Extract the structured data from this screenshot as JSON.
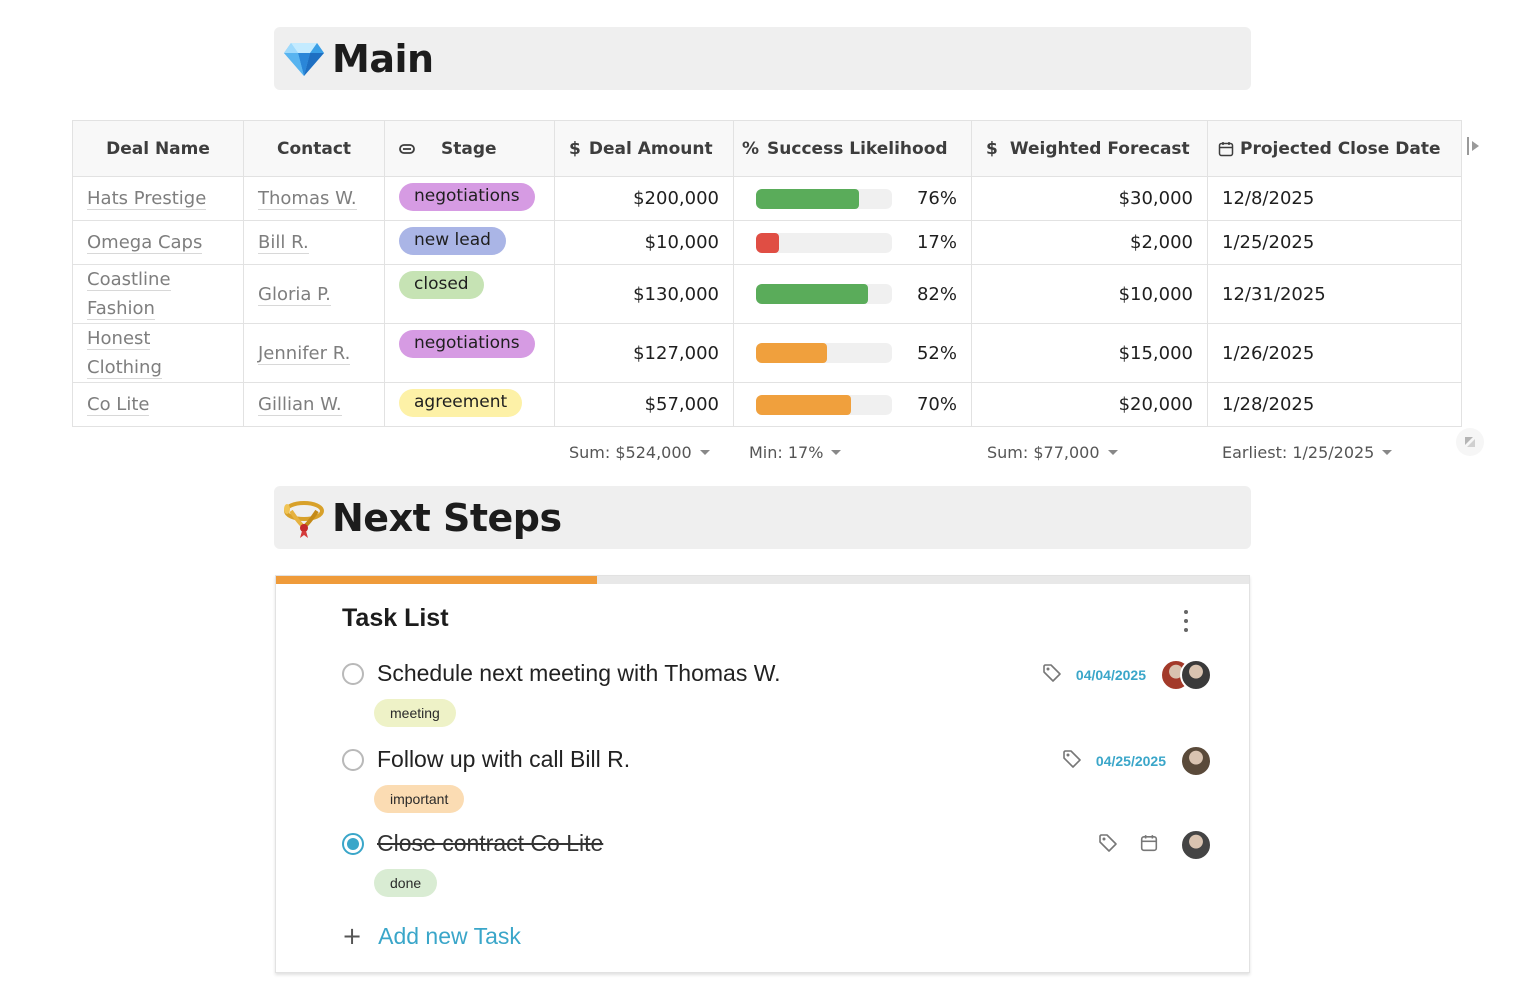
{
  "main_section": {
    "title": "Main",
    "icon": "gem-icon"
  },
  "table": {
    "columns": [
      {
        "label": "Deal Name",
        "icon": ""
      },
      {
        "label": "Contact",
        "icon": ""
      },
      {
        "label": "Stage",
        "icon": "select-icon"
      },
      {
        "label": "Deal Amount",
        "icon": "dollar-icon"
      },
      {
        "label": "Success Likelihood",
        "icon": "percent-icon"
      },
      {
        "label": "Weighted Forecast",
        "icon": "dollar-icon"
      },
      {
        "label": "Projected Close Date",
        "icon": "calendar-icon"
      }
    ],
    "rows": [
      {
        "deal": "Hats Prestige",
        "contact": "Thomas W.",
        "stage": "negotiations",
        "stage_color": "#d69be3",
        "amount": "$200,000",
        "likelihood": 0.76,
        "likelihood_label": "76%",
        "bar_color": "#5aac5a",
        "forecast": "$30,000",
        "close": "12/8/2025"
      },
      {
        "deal": "Omega Caps",
        "contact": "Bill R.",
        "stage": "new lead",
        "stage_color": "#aab5e6",
        "amount": "$10,000",
        "likelihood": 0.17,
        "likelihood_label": "17%",
        "bar_color": "#e04e44",
        "forecast": "$2,000",
        "close": "1/25/2025"
      },
      {
        "deal": "Coastline Fashion",
        "contact": "Gloria P.",
        "stage": "closed",
        "stage_color": "#c6e3b4",
        "amount": "$130,000",
        "likelihood": 0.82,
        "likelihood_label": "82%",
        "bar_color": "#5aac5a",
        "forecast": "$10,000",
        "close": "12/31/2025"
      },
      {
        "deal": "Honest Clothing",
        "contact": "Jennifer R.",
        "stage": "negotiations",
        "stage_color": "#d69be3",
        "amount": "$127,000",
        "likelihood": 0.52,
        "likelihood_label": "52%",
        "bar_color": "#f0a03d",
        "forecast": "$15,000",
        "close": "1/26/2025"
      },
      {
        "deal": "Co Lite",
        "contact": "Gillian W.",
        "stage": "agreement",
        "stage_color": "#fdf1a7",
        "amount": "$57,000",
        "likelihood": 0.7,
        "likelihood_label": "70%",
        "bar_color": "#f0a03d",
        "forecast": "$20,000",
        "close": "1/28/2025"
      }
    ],
    "footer": {
      "amount": "Sum: $524,000",
      "likelihood": "Min: 17%",
      "forecast": "Sum: $77,000",
      "close": "Earliest: 1/25/2025"
    }
  },
  "next_steps_section": {
    "title": "Next Steps",
    "icon": "postal-horn-icon"
  },
  "task_list": {
    "title": "Task List",
    "progress": 0.33,
    "progress_color": "#ef9b3a",
    "tasks": [
      {
        "text": "Schedule next meeting with Thomas W.",
        "done": false,
        "date": "04/04/2025",
        "tag": "meeting",
        "tag_color": "#eef2c7",
        "avatars": 2
      },
      {
        "text": "Follow up with call Bill R.",
        "done": false,
        "date": "04/25/2025",
        "tag": "important",
        "tag_color": "#fbdcb3",
        "avatars": 1
      },
      {
        "text": "Close contract Co Lite",
        "done": true,
        "date": "",
        "tag": "done",
        "tag_color": "#d9ecd3",
        "avatars": 1
      }
    ],
    "add_label": "Add new Task",
    "add_icon": "plus-icon"
  },
  "colors": {
    "accent": "#3aa6c9",
    "header_bg": "#efefef"
  }
}
